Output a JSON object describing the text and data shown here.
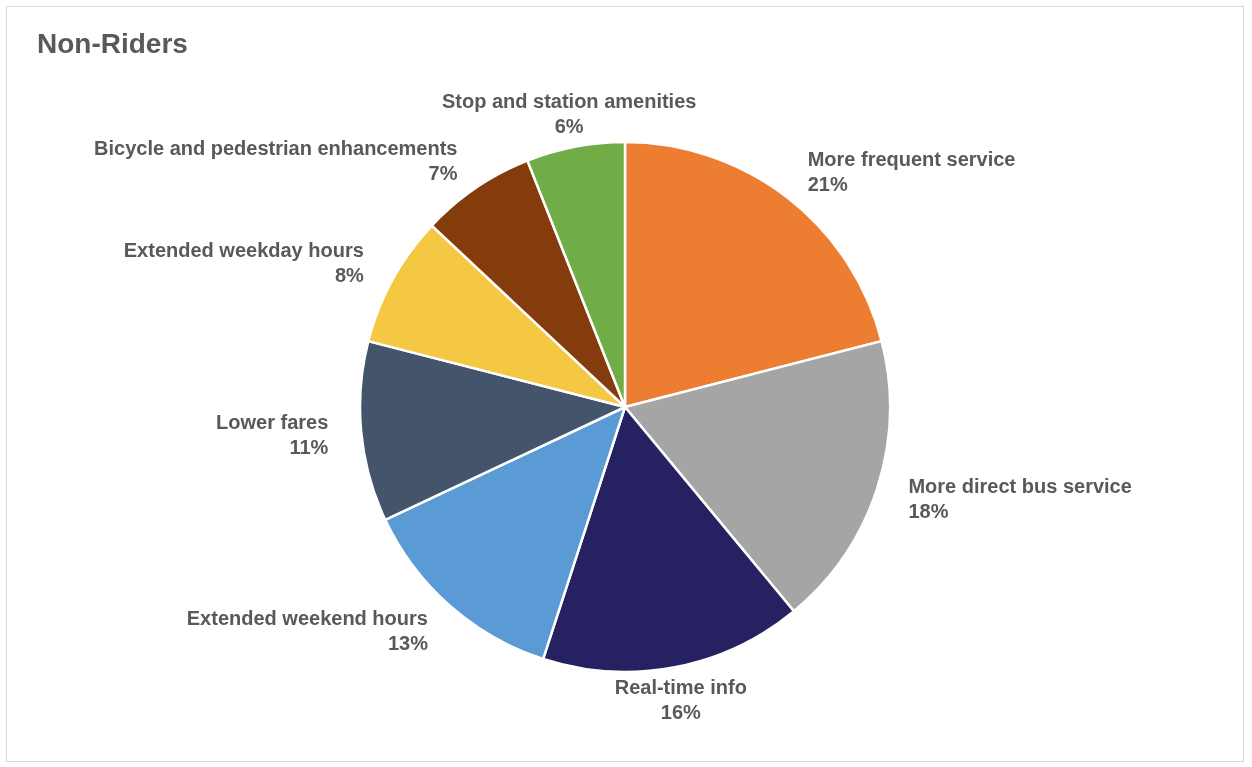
{
  "chart_data": {
    "type": "pie",
    "title": "Non-Riders",
    "categories": [
      "More frequent service",
      "More direct bus service",
      "Real-time info",
      "Extended weekend hours",
      "Lower fares",
      "Extended weekday hours",
      "Bicycle  and pedestrian enhancements",
      "Stop and station amenities"
    ],
    "values": [
      21,
      18,
      16,
      13,
      11,
      8,
      7,
      6
    ],
    "value_labels": [
      "21%",
      "18%",
      "16%",
      "13%",
      "11%",
      "8%",
      "7%",
      "6%"
    ],
    "colors": [
      "#ed7d31",
      "#a5a5a5",
      "#262262",
      "#5b9bd5",
      "#44546a",
      "#f4c842",
      "#843c0c",
      "#70ad47"
    ],
    "legend": false
  }
}
